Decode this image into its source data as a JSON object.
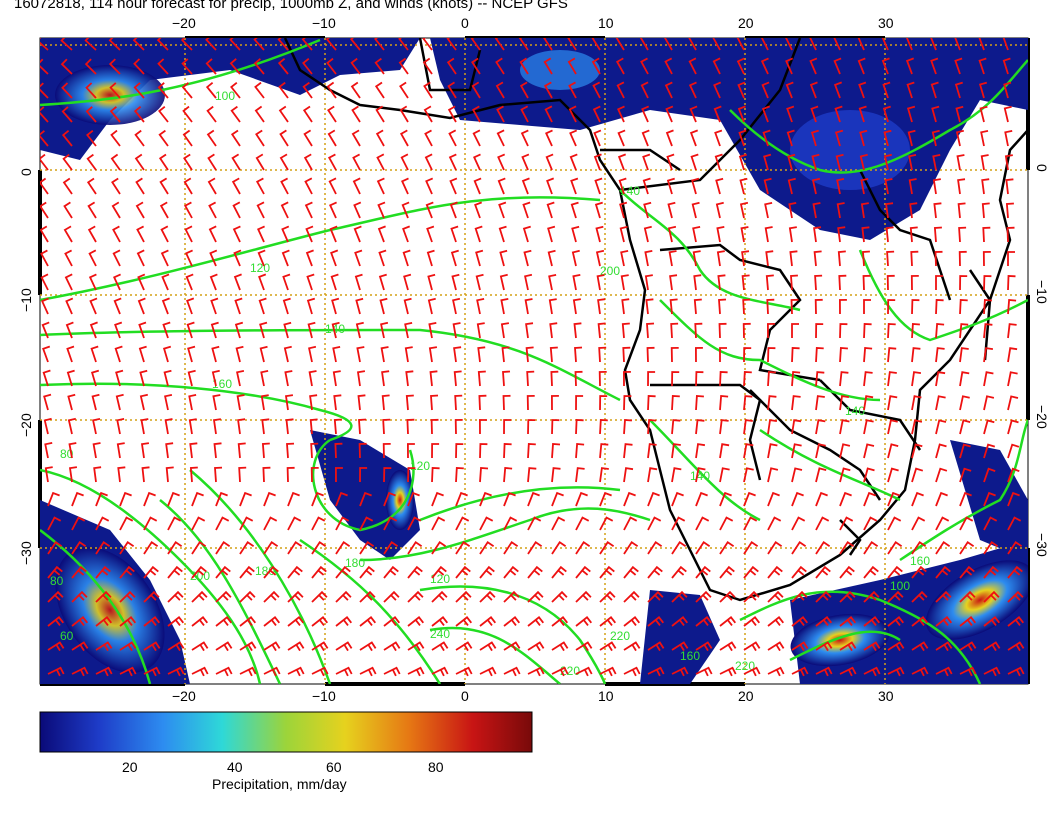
{
  "title": "16072818, 114 hour forecast for precip, 1000mb Z, and winds (knots) -- NCEP GFS",
  "axes": {
    "lon_ticks": [
      "−20",
      "−10",
      "0",
      "10",
      "20",
      "30"
    ],
    "lat_ticks": [
      "0",
      "−10",
      "−20",
      "−30"
    ]
  },
  "contour_labels": [
    "100",
    "120",
    "140",
    "160",
    "180",
    "80",
    "140",
    "120",
    "140",
    "220",
    "240",
    "180",
    "220",
    "160",
    "200",
    "120",
    "220",
    "140",
    "160",
    "100",
    "60",
    "80",
    "200"
  ],
  "colorbar": {
    "ticks": [
      "20",
      "40",
      "60",
      "80"
    ],
    "label": "Precipitation, mm/day",
    "colors": [
      "#0a0a78",
      "#1e3cc8",
      "#2d8cf0",
      "#2ed8d8",
      "#9cd43a",
      "#e6d21e",
      "#e67814",
      "#c81414",
      "#780a0a"
    ]
  },
  "colors": {
    "winds": "#ee1111",
    "contours": "#22dd22",
    "land": "#000000",
    "grid": "#d4a017"
  }
}
